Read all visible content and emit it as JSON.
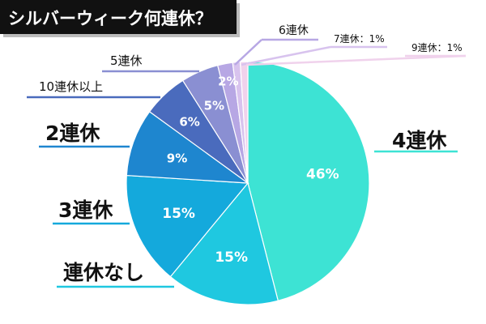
{
  "chart_data": {
    "type": "pie",
    "title": "シルバーウィーク何連休？",
    "slices": [
      {
        "label": "4連休",
        "value": 46,
        "value_label": "46%",
        "color": "#3de3d4"
      },
      {
        "label": "連休なし",
        "value": 15,
        "value_label": "15%",
        "color": "#1fc8e0"
      },
      {
        "label": "3連休",
        "value": 15,
        "value_label": "15%",
        "color": "#14a9dc"
      },
      {
        "label": "2連休",
        "value": 9,
        "value_label": "9%",
        "color": "#1e86cf"
      },
      {
        "label": "10連休以上",
        "value": 6,
        "value_label": "6%",
        "color": "#4a6bbd"
      },
      {
        "label": "5連休",
        "value": 5,
        "value_label": "5%",
        "color": "#8a8fd2"
      },
      {
        "label": "6連休",
        "value": 2,
        "value_label": "2%",
        "color": "#b7a7e4"
      },
      {
        "label": "7連休：1%",
        "value": 1,
        "value_label": "",
        "color": "#d8c3ee"
      },
      {
        "label": "9連休：1%",
        "value": 1,
        "value_label": "",
        "color": "#f0d2ec"
      }
    ]
  }
}
